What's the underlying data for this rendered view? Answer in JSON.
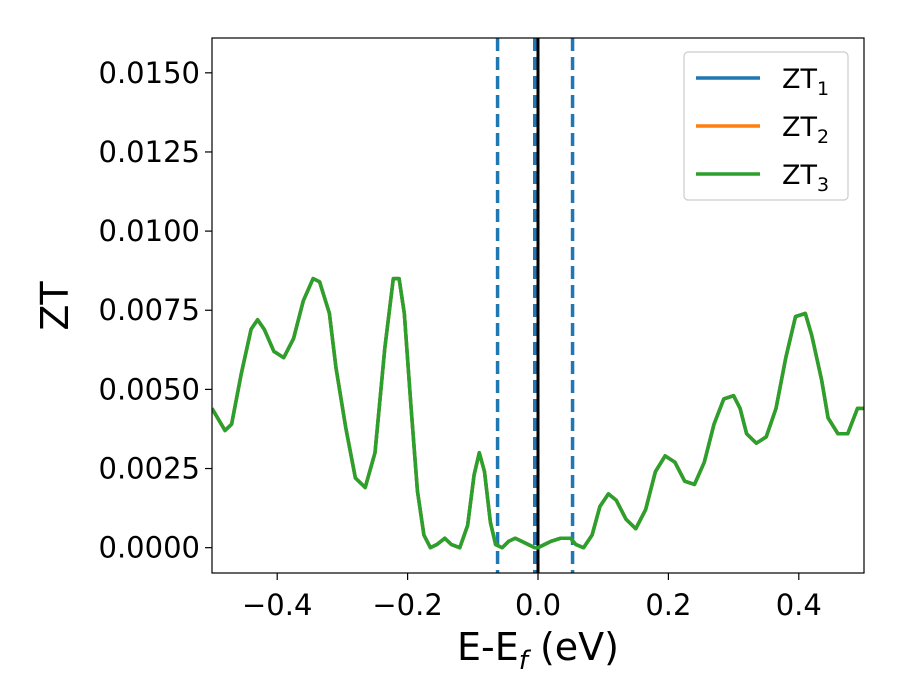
{
  "chart_data": {
    "type": "line",
    "xlabel": {
      "main": "E-E",
      "sub": "f",
      "suffix": " (eV)"
    },
    "ylabel": "ZT",
    "xlim": [
      -0.5,
      0.5
    ],
    "ylim": [
      -0.0008,
      0.0161
    ],
    "xticks": [
      -0.4,
      -0.2,
      0.0,
      0.2,
      0.4
    ],
    "xtick_labels": [
      "−0.4",
      "−0.2",
      "0.0",
      "0.2",
      "0.4"
    ],
    "yticks": [
      0.0,
      0.0025,
      0.005,
      0.0075,
      0.01,
      0.0125,
      0.015
    ],
    "ytick_labels": [
      "0.0000",
      "0.0025",
      "0.0050",
      "0.0075",
      "0.0100",
      "0.0125",
      "0.0150"
    ],
    "grid": false,
    "legend_position": "top-right",
    "vertical_lines": [
      {
        "x": -0.062,
        "style": "dashed",
        "color": "#1f77b4"
      },
      {
        "x": -0.005,
        "style": "dashed",
        "color": "#1f77b4"
      },
      {
        "x": 0.053,
        "style": "dashed",
        "color": "#1f77b4"
      },
      {
        "x": 0.0,
        "style": "solid",
        "color": "#000000"
      }
    ],
    "series": [
      {
        "name": "ZT",
        "subscript": "1",
        "color": "#1f77b4",
        "x": [
          -0.5,
          -0.48,
          -0.47,
          -0.455,
          -0.44,
          -0.43,
          -0.42,
          -0.405,
          -0.39,
          -0.375,
          -0.36,
          -0.345,
          -0.335,
          -0.32,
          -0.31,
          -0.295,
          -0.28,
          -0.265,
          -0.25,
          -0.235,
          -0.222,
          -0.213,
          -0.205,
          -0.195,
          -0.185,
          -0.175,
          -0.165,
          -0.155,
          -0.143,
          -0.133,
          -0.12,
          -0.108,
          -0.098,
          -0.09,
          -0.082,
          -0.073,
          -0.065,
          -0.055,
          -0.045,
          -0.035,
          -0.025,
          -0.015,
          -0.005,
          0.0,
          0.01,
          0.02,
          0.035,
          0.05,
          0.058,
          0.07,
          0.083,
          0.095,
          0.108,
          0.12,
          0.135,
          0.15,
          0.165,
          0.18,
          0.195,
          0.21,
          0.225,
          0.24,
          0.255,
          0.27,
          0.285,
          0.3,
          0.31,
          0.32,
          0.335,
          0.35,
          0.365,
          0.38,
          0.395,
          0.41,
          0.42,
          0.435,
          0.445,
          0.46,
          0.475,
          0.49,
          0.5
        ],
        "y": [
          0.0044,
          0.0037,
          0.0039,
          0.0055,
          0.0069,
          0.0072,
          0.0069,
          0.0062,
          0.006,
          0.0066,
          0.0078,
          0.0085,
          0.0084,
          0.0074,
          0.0057,
          0.0038,
          0.0022,
          0.0019,
          0.003,
          0.0063,
          0.0085,
          0.0085,
          0.0074,
          0.0045,
          0.0018,
          0.0004,
          0.0,
          0.0001,
          0.0003,
          0.0001,
          0.0,
          0.0007,
          0.0023,
          0.003,
          0.0024,
          0.0008,
          0.0001,
          0.0,
          0.0002,
          0.0003,
          0.0002,
          0.0001,
          0.0,
          0.0,
          0.0001,
          0.0002,
          0.0003,
          0.0003,
          0.0001,
          0.0,
          0.0004,
          0.0013,
          0.0017,
          0.0015,
          0.0009,
          0.0006,
          0.0012,
          0.0024,
          0.0029,
          0.0027,
          0.0021,
          0.002,
          0.0027,
          0.0039,
          0.0047,
          0.0048,
          0.0044,
          0.0036,
          0.0033,
          0.0035,
          0.0044,
          0.006,
          0.0073,
          0.0074,
          0.0067,
          0.0053,
          0.0041,
          0.0036,
          0.0036,
          0.0044,
          0.0044
        ]
      },
      {
        "name": "ZT",
        "subscript": "2",
        "color": "#ff7f0e",
        "x": [
          -0.5,
          -0.48,
          -0.47,
          -0.455,
          -0.44,
          -0.43,
          -0.42,
          -0.405,
          -0.39,
          -0.375,
          -0.36,
          -0.345,
          -0.335,
          -0.32,
          -0.31,
          -0.295,
          -0.28,
          -0.265,
          -0.25,
          -0.235,
          -0.222,
          -0.213,
          -0.205,
          -0.195,
          -0.185,
          -0.175,
          -0.165,
          -0.155,
          -0.143,
          -0.133,
          -0.12,
          -0.108,
          -0.098,
          -0.09,
          -0.082,
          -0.073,
          -0.065,
          -0.055,
          -0.045,
          -0.035,
          -0.025,
          -0.015,
          -0.005,
          0.0,
          0.01,
          0.02,
          0.035,
          0.05,
          0.058,
          0.07,
          0.083,
          0.095,
          0.108,
          0.12,
          0.135,
          0.15,
          0.165,
          0.18,
          0.195,
          0.21,
          0.225,
          0.24,
          0.255,
          0.27,
          0.285,
          0.3,
          0.31,
          0.32,
          0.335,
          0.35,
          0.365,
          0.38,
          0.395,
          0.41,
          0.42,
          0.435,
          0.445,
          0.46,
          0.475,
          0.49,
          0.5
        ],
        "y": [
          0.0044,
          0.0037,
          0.0039,
          0.0055,
          0.0069,
          0.0072,
          0.0069,
          0.0062,
          0.006,
          0.0066,
          0.0078,
          0.0085,
          0.0084,
          0.0074,
          0.0057,
          0.0038,
          0.0022,
          0.0019,
          0.003,
          0.0063,
          0.0085,
          0.0085,
          0.0074,
          0.0045,
          0.0018,
          0.0004,
          0.0,
          0.0001,
          0.0003,
          0.0001,
          0.0,
          0.0007,
          0.0023,
          0.003,
          0.0024,
          0.0008,
          0.0001,
          0.0,
          0.0002,
          0.0003,
          0.0002,
          0.0001,
          0.0,
          0.0,
          0.0001,
          0.0002,
          0.0003,
          0.0003,
          0.0001,
          0.0,
          0.0004,
          0.0013,
          0.0017,
          0.0015,
          0.0009,
          0.0006,
          0.0012,
          0.0024,
          0.0029,
          0.0027,
          0.0021,
          0.002,
          0.0027,
          0.0039,
          0.0047,
          0.0048,
          0.0044,
          0.0036,
          0.0033,
          0.0035,
          0.0044,
          0.006,
          0.0073,
          0.0074,
          0.0067,
          0.0053,
          0.0041,
          0.0036,
          0.0036,
          0.0044,
          0.0044
        ]
      },
      {
        "name": "ZT",
        "subscript": "3",
        "color": "#2ca02c",
        "x": [
          -0.5,
          -0.48,
          -0.47,
          -0.455,
          -0.44,
          -0.43,
          -0.42,
          -0.405,
          -0.39,
          -0.375,
          -0.36,
          -0.345,
          -0.335,
          -0.32,
          -0.31,
          -0.295,
          -0.28,
          -0.265,
          -0.25,
          -0.235,
          -0.222,
          -0.213,
          -0.205,
          -0.195,
          -0.185,
          -0.175,
          -0.165,
          -0.155,
          -0.143,
          -0.133,
          -0.12,
          -0.108,
          -0.098,
          -0.09,
          -0.082,
          -0.073,
          -0.065,
          -0.055,
          -0.045,
          -0.035,
          -0.025,
          -0.015,
          -0.005,
          0.0,
          0.01,
          0.02,
          0.035,
          0.05,
          0.058,
          0.07,
          0.083,
          0.095,
          0.108,
          0.12,
          0.135,
          0.15,
          0.165,
          0.18,
          0.195,
          0.21,
          0.225,
          0.24,
          0.255,
          0.27,
          0.285,
          0.3,
          0.31,
          0.32,
          0.335,
          0.35,
          0.365,
          0.38,
          0.395,
          0.41,
          0.42,
          0.435,
          0.445,
          0.46,
          0.475,
          0.49,
          0.5
        ],
        "y": [
          0.0044,
          0.0037,
          0.0039,
          0.0055,
          0.0069,
          0.0072,
          0.0069,
          0.0062,
          0.006,
          0.0066,
          0.0078,
          0.0085,
          0.0084,
          0.0074,
          0.0057,
          0.0038,
          0.0022,
          0.0019,
          0.003,
          0.0063,
          0.0085,
          0.0085,
          0.0074,
          0.0045,
          0.0018,
          0.0004,
          0.0,
          0.0001,
          0.0003,
          0.0001,
          0.0,
          0.0007,
          0.0023,
          0.003,
          0.0024,
          0.0008,
          0.0001,
          0.0,
          0.0002,
          0.0003,
          0.0002,
          0.0001,
          0.0,
          0.0,
          0.0001,
          0.0002,
          0.0003,
          0.0003,
          0.0001,
          0.0,
          0.0004,
          0.0013,
          0.0017,
          0.0015,
          0.0009,
          0.0006,
          0.0012,
          0.0024,
          0.0029,
          0.0027,
          0.0021,
          0.002,
          0.0027,
          0.0039,
          0.0047,
          0.0048,
          0.0044,
          0.0036,
          0.0033,
          0.0035,
          0.0044,
          0.006,
          0.0073,
          0.0074,
          0.0067,
          0.0053,
          0.0041,
          0.0036,
          0.0036,
          0.0044,
          0.0044
        ]
      }
    ]
  }
}
